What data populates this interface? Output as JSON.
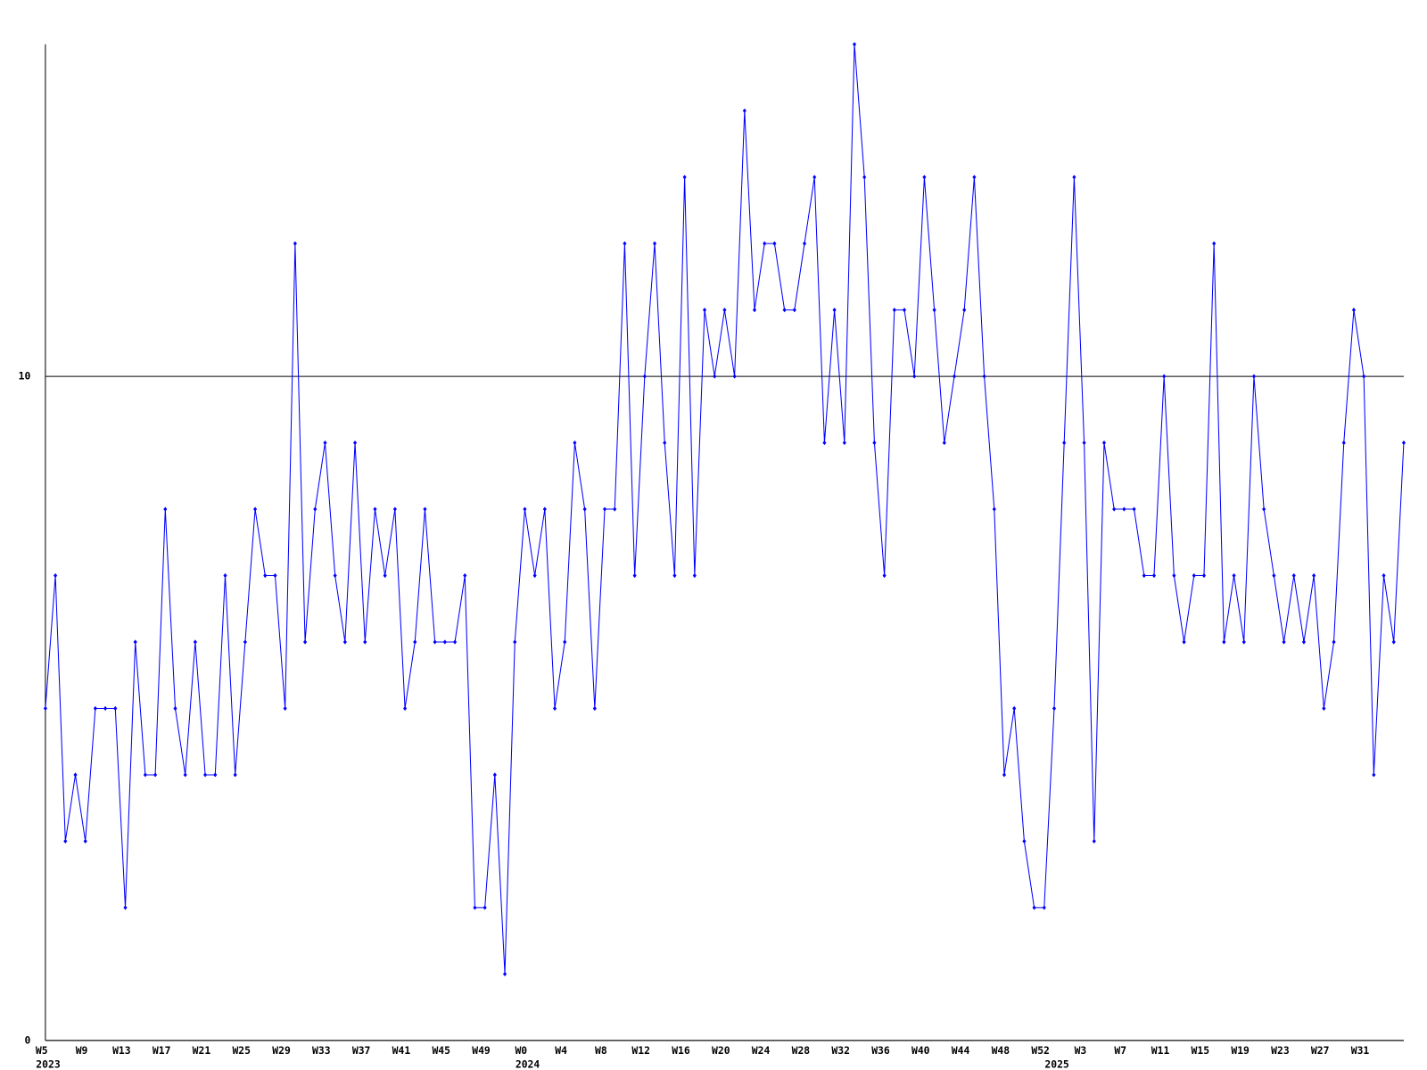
{
  "chart_data": {
    "type": "line",
    "categories": [
      "W5",
      null,
      null,
      null,
      "W9",
      null,
      null,
      null,
      "W13",
      null,
      null,
      null,
      "W17",
      null,
      null,
      null,
      "W21",
      null,
      null,
      null,
      "W25",
      null,
      null,
      null,
      "W29",
      null,
      null,
      null,
      "W33",
      null,
      null,
      null,
      "W37",
      null,
      null,
      null,
      "W41",
      null,
      null,
      null,
      "W45",
      null,
      null,
      null,
      "W49",
      null,
      null,
      null,
      "W0",
      null,
      null,
      null,
      "W4",
      null,
      null,
      null,
      "W8",
      null,
      null,
      null,
      "W12",
      null,
      null,
      null,
      "W16",
      null,
      null,
      null,
      "W20",
      null,
      null,
      null,
      "W24",
      null,
      null,
      null,
      "W28",
      null,
      null,
      null,
      "W32",
      null,
      null,
      null,
      "W36",
      null,
      null,
      null,
      "W40",
      null,
      null,
      null,
      "W44",
      null,
      null,
      null,
      "W48",
      null,
      null,
      null,
      "W52",
      null,
      null,
      null,
      "W3",
      null,
      null,
      null,
      "W7",
      null,
      null,
      null,
      "W11",
      null,
      null,
      null,
      "W15",
      null,
      null,
      null,
      "W19",
      null,
      null,
      null,
      "W23",
      null,
      null,
      null,
      "W27",
      null,
      null,
      null,
      "W31",
      null,
      null,
      null,
      null
    ],
    "year_labels": [
      "2023",
      "2024",
      "2025"
    ],
    "series": [
      {
        "color": "#0000ff",
        "values": [
          5,
          7,
          3,
          4,
          3,
          5,
          5,
          5,
          2,
          6,
          4,
          4,
          8,
          5,
          4,
          6,
          4,
          4,
          7,
          4,
          6,
          8,
          7,
          7,
          5,
          12,
          6,
          8,
          9,
          7,
          6,
          9,
          6,
          8,
          7,
          8,
          5,
          6,
          8,
          6,
          6,
          6,
          7,
          2,
          2,
          4,
          1,
          6,
          8,
          7,
          8,
          5,
          6,
          9,
          8,
          5,
          8,
          8,
          12,
          7,
          10,
          12,
          9,
          7,
          13,
          7,
          11,
          10,
          11,
          10,
          14,
          11,
          12,
          12,
          11,
          11,
          12,
          13,
          9,
          11,
          9,
          15,
          13,
          9,
          7,
          11,
          11,
          10,
          13,
          11,
          9,
          10,
          11,
          13,
          10,
          8,
          4,
          5,
          3,
          2,
          2,
          5,
          9,
          13,
          9,
          3,
          9,
          8,
          8,
          8,
          7,
          7,
          10,
          7,
          6,
          7,
          7,
          12,
          6,
          7,
          6,
          10,
          8,
          7,
          6,
          7,
          6,
          7,
          5,
          6,
          9,
          11,
          10,
          4,
          7,
          6,
          9
        ]
      }
    ],
    "ylim": [
      0,
      15
    ],
    "yticks": [
      0,
      10
    ],
    "grid": true
  }
}
